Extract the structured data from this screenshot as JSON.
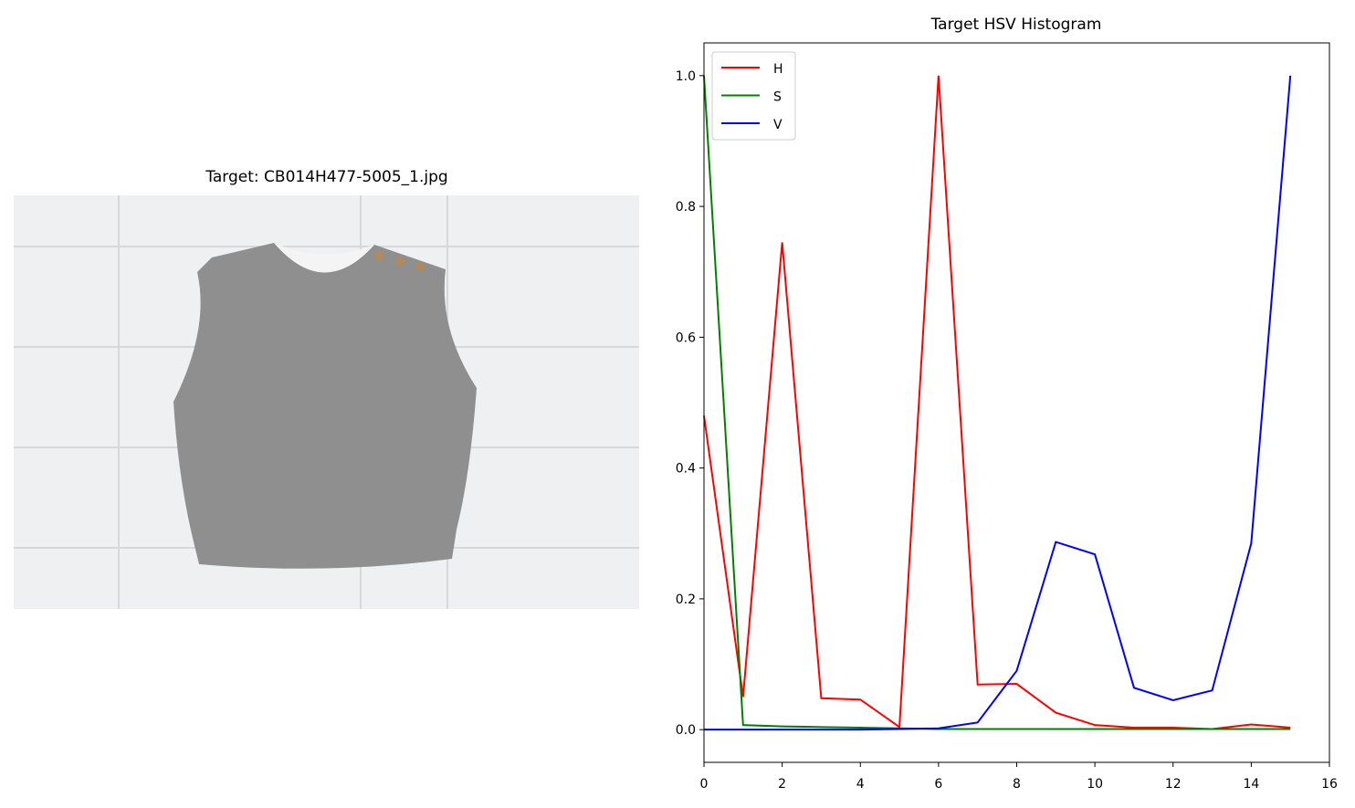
{
  "chart_data": [
    {
      "type": "image",
      "title": "Target: CB014H477-5005_1.jpg"
    },
    {
      "type": "line",
      "title": "Target HSV Histogram",
      "x": [
        0,
        1,
        2,
        3,
        4,
        5,
        6,
        7,
        8,
        9,
        10,
        11,
        12,
        13,
        14,
        15
      ],
      "series": [
        {
          "name": "H",
          "color": "#ff0000",
          "values": [
            0.48,
            0.05,
            0.745,
            0.048,
            0.046,
            0.004,
            1.0,
            0.069,
            0.07,
            0.026,
            0.007,
            0.003,
            0.003,
            0.001,
            0.008,
            0.003
          ]
        },
        {
          "name": "S",
          "color": "#008000",
          "values": [
            1.0,
            0.007,
            0.005,
            0.004,
            0.003,
            0.002,
            0.001,
            0.001,
            0.001,
            0.001,
            0.001,
            0.001,
            0.001,
            0.001,
            0.001,
            0.001
          ]
        },
        {
          "name": "V",
          "color": "#0000ff",
          "values": [
            0,
            0,
            0,
            0,
            0,
            0.001,
            0.002,
            0.011,
            0.09,
            0.287,
            0.268,
            0.064,
            0.045,
            0.06,
            0.285,
            1.0
          ]
        }
      ],
      "xlim": [
        0,
        16
      ],
      "xticks": [
        0,
        2,
        4,
        6,
        8,
        10,
        12,
        14,
        16
      ],
      "ylim": [
        -0.05,
        1.05
      ],
      "yticks": [
        {
          "value": 0,
          "label": "0.0"
        },
        {
          "value": 0.2,
          "label": "0.2"
        },
        {
          "value": 0.4,
          "label": "0.4"
        },
        {
          "value": 0.6,
          "label": "0.6"
        },
        {
          "value": 0.8,
          "label": "0.8"
        },
        {
          "value": 1,
          "label": "1.0"
        }
      ],
      "legend": "upper left"
    }
  ]
}
